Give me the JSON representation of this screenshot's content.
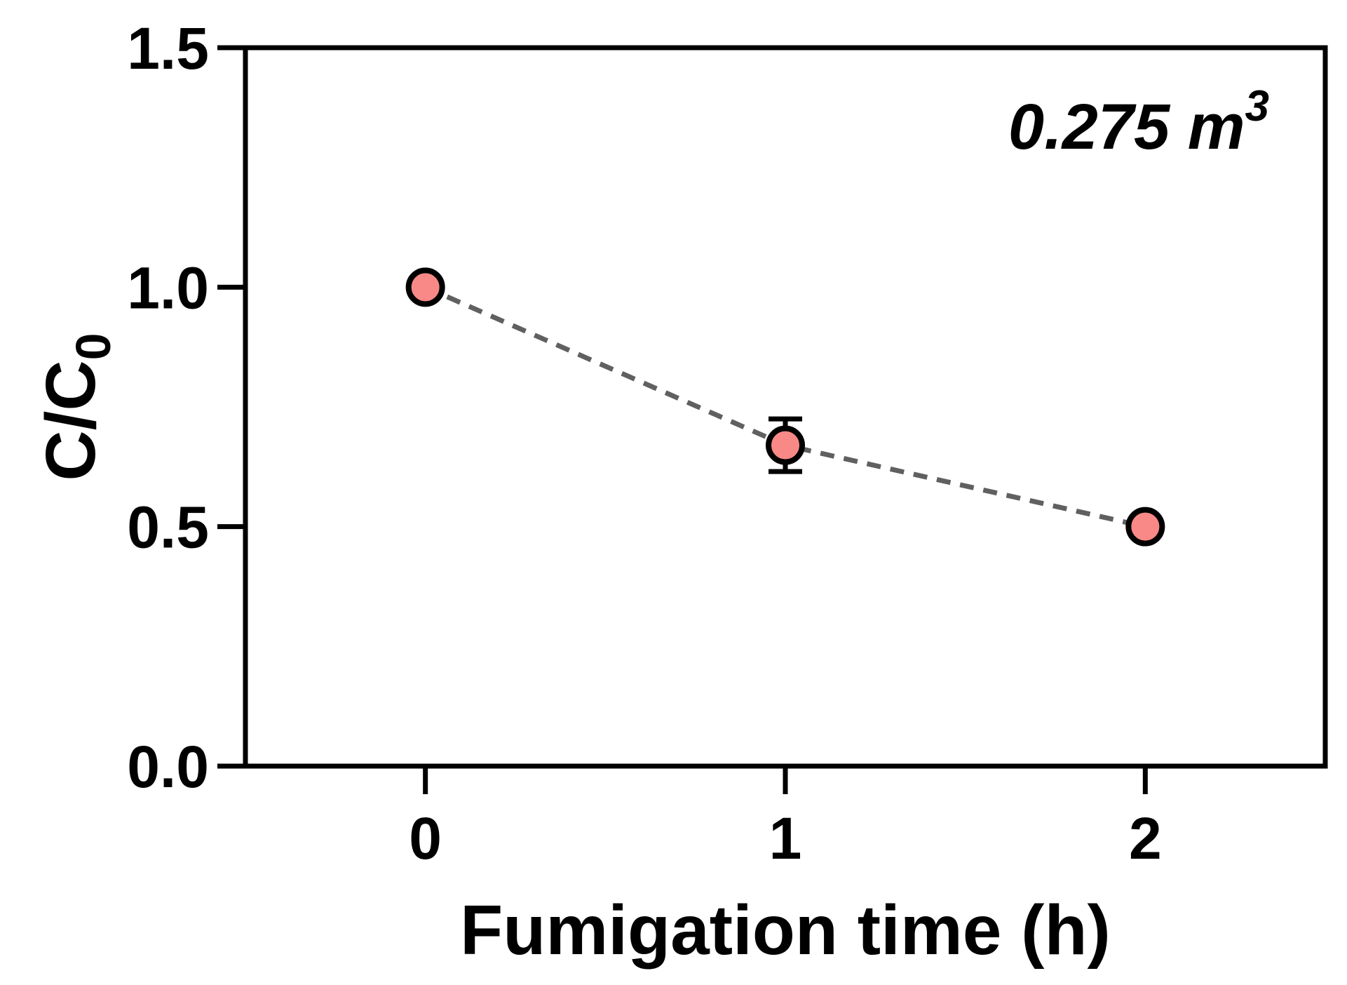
{
  "chart_data": {
    "type": "scatter",
    "title": "",
    "xlabel": "Fumigation time (h)",
    "ylabel_main": "C/C",
    "ylabel_sub": "0",
    "xlim": [
      -0.5,
      2.5
    ],
    "ylim": [
      0,
      1.5
    ],
    "x_ticks": [
      0,
      1,
      2
    ],
    "x_tick_labels": [
      "0",
      "1",
      "2"
    ],
    "y_ticks": [
      0,
      0.5,
      1,
      1.5
    ],
    "y_tick_labels": [
      "0.0",
      "0.5",
      "1.0",
      "1.5"
    ],
    "grid": false,
    "annotation_main": "0.275 m",
    "annotation_sup": "3",
    "series": [
      {
        "x": [
          0,
          1,
          2
        ],
        "y": [
          1.0,
          0.67,
          0.5
        ],
        "error": [
          0,
          0.055,
          0
        ],
        "marker_color": "#f88987",
        "marker_edge_color": "#000000",
        "line_color": "#606060",
        "line_style": "dashed"
      }
    ]
  }
}
